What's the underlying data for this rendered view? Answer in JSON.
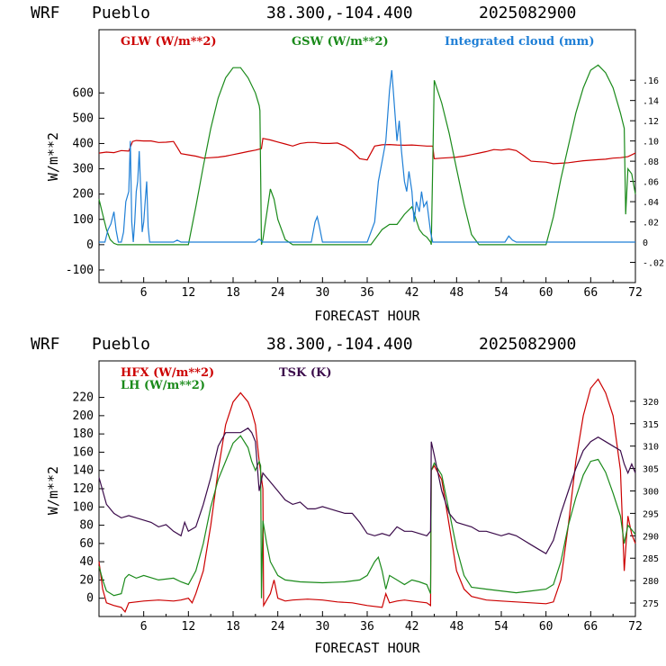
{
  "colors": {
    "red": "#cc0000",
    "green": "#1a8a1a",
    "blue": "#1f7fd6",
    "purple": "#3a0a4a"
  },
  "chart_data": [
    {
      "type": "line",
      "header": {
        "model": "WRF",
        "location": "Pueblo",
        "coords": "38.300,-104.400",
        "date": "2025082900"
      },
      "xlabel": "FORECAST HOUR",
      "ylabel": "W/m**2",
      "xlim": [
        0,
        72
      ],
      "ylim": [
        -150,
        850
      ],
      "y2lim": [
        -0.04,
        0.21
      ],
      "xticks": [
        6,
        12,
        18,
        24,
        30,
        36,
        42,
        48,
        54,
        60,
        66,
        72
      ],
      "yticks": [
        -100,
        0,
        100,
        200,
        300,
        400,
        500,
        600
      ],
      "y2ticks": [
        "-.02",
        "0",
        ".02",
        ".04",
        ".06",
        ".08",
        ".10",
        ".12",
        ".14",
        ".16"
      ],
      "series": [
        {
          "name": "GLW (W/m**2)",
          "color": "#cc0000",
          "axis": "left",
          "x": [
            0,
            1,
            2,
            3,
            4,
            4.5,
            5,
            6,
            7,
            8,
            9,
            10,
            10.5,
            11,
            12,
            13,
            14,
            15,
            16,
            17,
            18,
            19,
            20,
            21,
            21.8,
            22,
            23,
            24,
            25,
            26,
            27,
            28,
            29,
            30,
            31,
            32,
            33,
            34,
            35,
            36,
            37,
            38,
            39,
            40,
            41,
            42,
            43,
            44,
            44.8,
            45,
            46,
            47,
            48,
            49,
            50,
            51,
            52,
            53,
            54,
            55,
            56,
            57,
            58,
            59,
            60,
            61,
            62,
            63,
            64,
            65,
            66,
            67,
            68,
            69,
            70,
            71,
            72
          ],
          "y": [
            362,
            366,
            364,
            372,
            370,
            408,
            412,
            410,
            410,
            404,
            405,
            408,
            385,
            360,
            355,
            350,
            342,
            344,
            346,
            350,
            356,
            362,
            368,
            374,
            380,
            420,
            414,
            406,
            398,
            390,
            400,
            404,
            404,
            400,
            400,
            402,
            390,
            370,
            340,
            335,
            390,
            395,
            396,
            394,
            393,
            394,
            392,
            390,
            390,
            340,
            342,
            344,
            346,
            350,
            356,
            362,
            368,
            376,
            374,
            378,
            372,
            352,
            330,
            328,
            326,
            320,
            322,
            324,
            328,
            332,
            334,
            336,
            338,
            342,
            344,
            348,
            362
          ]
        },
        {
          "name": "GSW (W/m**2)",
          "color": "#1a8a1a",
          "axis": "left",
          "x": [
            0,
            0.5,
            1,
            1.5,
            2,
            2.5,
            3,
            12,
            13,
            14,
            15,
            16,
            17,
            18,
            19,
            20,
            21,
            21.5,
            21.6,
            21.8,
            22,
            23,
            23.5,
            24,
            25,
            26,
            35,
            36.5,
            37,
            38,
            39,
            40,
            41,
            42,
            43,
            43.5,
            44,
            44.5,
            44.6,
            45,
            46,
            47,
            48,
            49,
            50,
            51,
            60,
            61,
            62,
            63,
            64,
            65,
            66,
            67,
            68,
            69,
            70,
            70.5,
            70.7,
            71,
            71.5,
            72
          ],
          "y": [
            180,
            120,
            60,
            20,
            5,
            0,
            0,
            0,
            150,
            310,
            460,
            580,
            660,
            700,
            700,
            660,
            600,
            550,
            530,
            0,
            20,
            220,
            180,
            100,
            20,
            0,
            0,
            0,
            20,
            60,
            80,
            80,
            120,
            150,
            60,
            40,
            30,
            10,
            0,
            650,
            560,
            440,
            300,
            160,
            40,
            0,
            0,
            110,
            260,
            390,
            520,
            620,
            690,
            710,
            680,
            620,
            520,
            460,
            120,
            300,
            280,
            200
          ]
        },
        {
          "name": "Integrated cloud (mm)",
          "color": "#1f7fd6",
          "axis": "right",
          "x": [
            0,
            0.3,
            0.8,
            1.2,
            1.6,
            2.0,
            2.3,
            2.6,
            3.0,
            3.3,
            3.6,
            4.0,
            4.2,
            4.4,
            4.6,
            4.8,
            5.0,
            5.2,
            5.4,
            5.6,
            5.8,
            6.0,
            6.2,
            6.4,
            6.6,
            6.8,
            7.2,
            8,
            10,
            10.5,
            11,
            12,
            20,
            21,
            21.5,
            22,
            23,
            28.5,
            29,
            29.3,
            29.6,
            30,
            30.5,
            36,
            37,
            37.5,
            38,
            38.5,
            39,
            39.3,
            39.6,
            40,
            40.3,
            40.6,
            41,
            41.3,
            41.6,
            42,
            42.3,
            42.6,
            43,
            43.3,
            43.6,
            44,
            44.5,
            44.8,
            45,
            54.5,
            55,
            55.5,
            56,
            72
          ],
          "y": [
            0,
            0,
            0,
            0.012,
            0.018,
            0.03,
            0.012,
            0,
            0,
            0.01,
            0.04,
            0.05,
            0.1,
            0.02,
            0.0,
            0.02,
            0.05,
            0.06,
            0.09,
            0.05,
            0.01,
            0.02,
            0.04,
            0.06,
            0.015,
            0.0,
            0,
            0,
            0,
            0.002,
            0,
            0,
            0,
            0,
            0.003,
            0,
            0,
            0,
            0.02,
            0.025,
            0.015,
            0,
            0,
            0,
            0.02,
            0.06,
            0.08,
            0.1,
            0.15,
            0.17,
            0.14,
            0.1,
            0.12,
            0.09,
            0.06,
            0.05,
            0.07,
            0.05,
            0.02,
            0.04,
            0.03,
            0.05,
            0.035,
            0.04,
            0.01,
            0.0,
            0,
            0,
            0.006,
            0.002,
            0,
            0
          ]
        }
      ]
    },
    {
      "type": "line",
      "header": {
        "model": "WRF",
        "location": "Pueblo",
        "coords": "38.300,-104.400",
        "date": "2025082900"
      },
      "xlabel": "FORECAST HOUR",
      "ylabel": "W/m**2",
      "xlim": [
        0,
        72
      ],
      "ylim": [
        -20,
        260
      ],
      "y2lim": [
        272,
        329
      ],
      "xticks": [
        6,
        12,
        18,
        24,
        30,
        36,
        42,
        48,
        54,
        60,
        66,
        72
      ],
      "yticks": [
        0,
        20,
        40,
        60,
        80,
        100,
        120,
        140,
        160,
        180,
        200,
        220
      ],
      "y2ticks": [
        275,
        280,
        285,
        290,
        295,
        300,
        305,
        310,
        315,
        320
      ],
      "series": [
        {
          "name": "HFX (W/m**2)",
          "color": "#cc0000",
          "axis": "left",
          "x": [
            0,
            0.5,
            1,
            2,
            3,
            3.5,
            4,
            6,
            8,
            10,
            11,
            12,
            12.5,
            13,
            14,
            15,
            16,
            17,
            18,
            19,
            20,
            20.5,
            21,
            21.5,
            22,
            22.1,
            23,
            23.5,
            24,
            25,
            26,
            28,
            30,
            32,
            34,
            36,
            38,
            38.5,
            39,
            40,
            41,
            42,
            43,
            44,
            44.5,
            44.6,
            45,
            46,
            47,
            48,
            49,
            50,
            52,
            54,
            56,
            58,
            60,
            61,
            62,
            63,
            64,
            65,
            66,
            67,
            68,
            69,
            70,
            70.5,
            71,
            71.5,
            72
          ],
          "y": [
            40,
            10,
            -5,
            -8,
            -10,
            -15,
            -5,
            -3,
            -2,
            -3,
            -2,
            0,
            -5,
            5,
            30,
            80,
            140,
            190,
            215,
            225,
            215,
            205,
            190,
            150,
            120,
            -8,
            5,
            20,
            0,
            -3,
            -2,
            -1,
            -2,
            -4,
            -5,
            -8,
            -10,
            5,
            -5,
            -3,
            -2,
            -3,
            -4,
            -5,
            -8,
            140,
            145,
            130,
            80,
            30,
            10,
            2,
            -2,
            -3,
            -4,
            -5,
            -6,
            -4,
            20,
            80,
            150,
            200,
            230,
            240,
            225,
            200,
            140,
            30,
            90,
            70,
            60
          ]
        },
        {
          "name": "LH (W/m**2)",
          "color": "#1a8a1a",
          "axis": "left",
          "x": [
            0,
            0.5,
            1,
            2,
            3,
            3.5,
            4,
            5,
            6,
            8,
            10,
            11,
            12,
            13,
            14,
            15,
            16,
            17,
            18,
            19,
            20,
            20.5,
            21,
            21.5,
            21.7,
            21.8,
            22,
            22.5,
            23,
            24,
            25,
            27,
            30,
            33,
            35,
            36,
            37,
            37.5,
            38,
            38.5,
            39,
            40,
            41,
            42,
            43,
            44,
            44.5,
            44.6,
            45,
            46,
            47,
            48,
            49,
            50,
            52,
            54,
            56,
            58,
            60,
            61,
            62,
            63,
            64,
            65,
            66,
            67,
            68,
            69,
            70,
            70.5,
            71,
            71.5,
            72
          ],
          "y": [
            35,
            20,
            8,
            3,
            5,
            22,
            26,
            22,
            25,
            20,
            22,
            18,
            15,
            30,
            60,
            100,
            130,
            150,
            170,
            178,
            165,
            150,
            140,
            150,
            145,
            0,
            85,
            60,
            40,
            25,
            20,
            18,
            17,
            18,
            20,
            25,
            40,
            45,
            30,
            10,
            25,
            20,
            15,
            20,
            18,
            15,
            5,
            140,
            148,
            135,
            95,
            55,
            25,
            12,
            10,
            8,
            6,
            8,
            10,
            15,
            40,
            80,
            110,
            135,
            150,
            152,
            138,
            115,
            90,
            60,
            80,
            75,
            70
          ]
        },
        {
          "name": "TSK (K)",
          "color": "#3a0a4a",
          "axis": "right",
          "x": [
            0,
            1,
            2,
            3,
            4,
            5,
            6,
            7,
            8,
            9,
            10,
            11,
            11.5,
            12,
            13,
            14,
            15,
            16,
            17,
            18,
            19,
            20,
            20.5,
            21,
            21.5,
            22,
            23,
            24,
            25,
            26,
            27,
            28,
            29,
            30,
            31,
            32,
            33,
            34,
            35,
            36,
            37,
            38,
            39,
            40,
            41,
            42,
            43,
            44,
            44.5,
            44.6,
            45,
            46,
            47,
            48,
            49,
            50,
            51,
            52,
            53,
            54,
            55,
            56,
            57,
            58,
            59,
            60,
            61,
            62,
            63,
            64,
            65,
            66,
            67,
            68,
            69,
            70,
            70.5,
            71,
            71.5,
            72
          ],
          "y": [
            303,
            297,
            295,
            294,
            294.5,
            294,
            293.5,
            293,
            292,
            292.5,
            291,
            290,
            293,
            291,
            292,
            297,
            303,
            310,
            313,
            313,
            313,
            314,
            313,
            311,
            300,
            304,
            302,
            300,
            298,
            297,
            297.5,
            296,
            296,
            296.5,
            296,
            295.5,
            295,
            295,
            293,
            290.5,
            290,
            290.5,
            290,
            292,
            291,
            291,
            290.5,
            290,
            291,
            311,
            308,
            300,
            295,
            293,
            292.5,
            292,
            291,
            291,
            290.5,
            290,
            290.5,
            290,
            289,
            288,
            287,
            286,
            289,
            295,
            300,
            305,
            309,
            311,
            312,
            311,
            310,
            309,
            306,
            304,
            306,
            304
          ]
        }
      ]
    }
  ]
}
